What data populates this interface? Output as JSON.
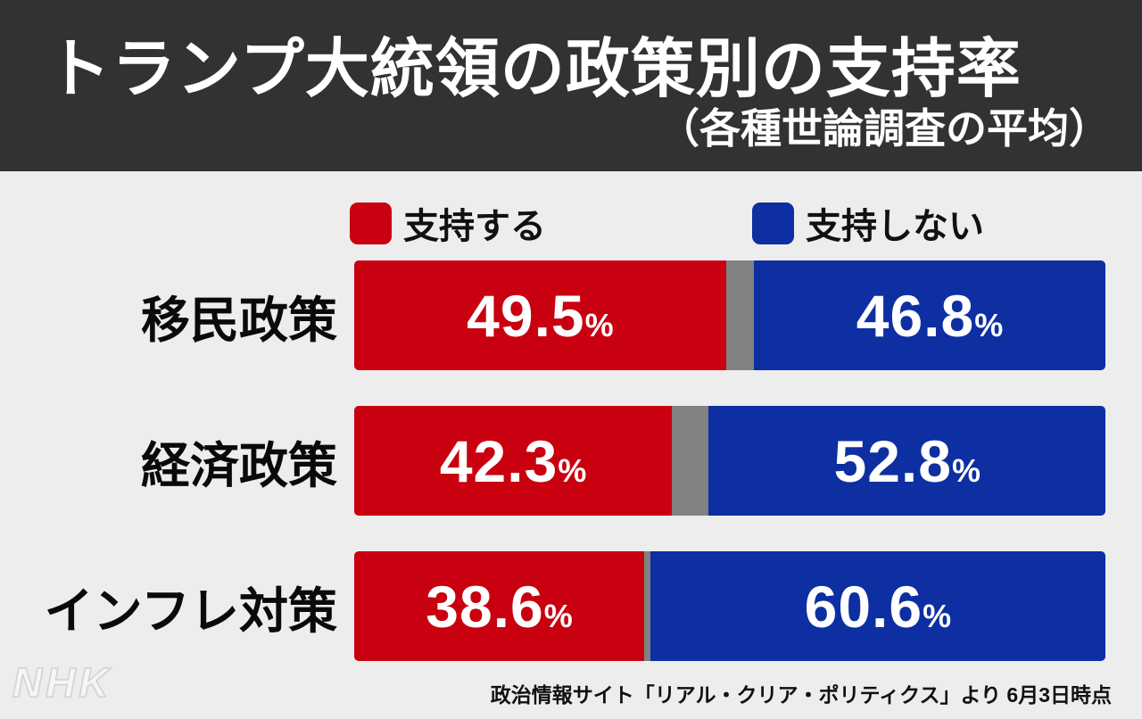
{
  "header": {
    "title": "トランプ大統領の政策別の支持率",
    "subtitle": "（各種世論調査の平均）"
  },
  "legend": {
    "approve_label": "支持する",
    "disapprove_label": "支持しない"
  },
  "chart": {
    "percent_sign": "%",
    "rows": [
      {
        "category": "移民政策",
        "approve": 49.5,
        "neither": 3.7,
        "disapprove": 46.8,
        "approve_label": "49.5",
        "disapprove_label": "46.8"
      },
      {
        "category": "経済政策",
        "approve": 42.3,
        "neither": 4.9,
        "disapprove": 52.8,
        "approve_label": "42.3",
        "disapprove_label": "52.8"
      },
      {
        "category": "インフレ対策",
        "approve": 38.6,
        "neither": 0.8,
        "disapprove": 60.6,
        "approve_label": "38.6",
        "disapprove_label": "60.6"
      }
    ]
  },
  "footer": {
    "logo": "NHK",
    "source": "政治情報サイト「リアル・クリア・ポリティクス」より 6月3日時点"
  },
  "colors": {
    "approve_red": "#c9000f",
    "disapprove_blue": "#0d2fa2",
    "neither_gray": "#818181",
    "header_bg": "#323232",
    "page_bg": "#ededed",
    "title_text": "#ffffff",
    "body_text": "#111111",
    "bar_value_text": "#ffffff"
  },
  "chart_data": {
    "type": "bar",
    "orientation": "horizontal-stacked",
    "title": "トランプ大統領の政策別の支持率",
    "subtitle": "（各種世論調査の平均）",
    "categories": [
      "移民政策",
      "経済政策",
      "インフレ対策"
    ],
    "series": [
      {
        "name": "支持する",
        "values": [
          49.5,
          42.3,
          38.6
        ],
        "color": "#c9000f"
      },
      {
        "name": "支持しない",
        "values": [
          46.8,
          52.8,
          60.6
        ],
        "color": "#0d2fa2"
      }
    ],
    "unit": "%",
    "xlim": [
      0,
      100
    ],
    "legend_position": "top",
    "grid": false,
    "source_note": "政治情報サイト「リアル・クリア・ポリティクス」より 6月3日時点"
  }
}
